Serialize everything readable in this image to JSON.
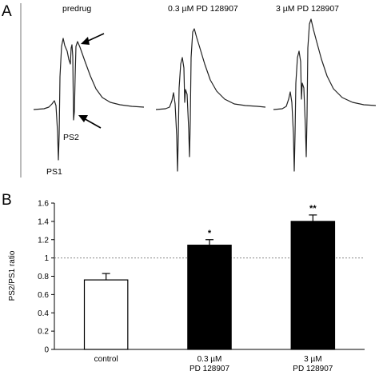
{
  "panel_a": {
    "label": "A",
    "conditions": [
      "predrug",
      "0.3 µM PD 128907",
      "3 µM PD 128907"
    ],
    "annotations": {
      "ps1": "PS1",
      "ps2": "PS2"
    }
  },
  "panel_b": {
    "label": "B"
  },
  "chart_data": {
    "type": "bar",
    "categories": [
      "control",
      "0.3 µM\nPD 128907",
      "3 µM\nPD 128907"
    ],
    "values": [
      0.76,
      1.14,
      1.4
    ],
    "errors": [
      0.07,
      0.06,
      0.07
    ],
    "significance": [
      "",
      "*",
      "**"
    ],
    "bar_fills": [
      "#ffffff",
      "#000000",
      "#000000"
    ],
    "reference_line": 1.0,
    "ylabel": "PS2/PS1 ratio",
    "xlabel": "",
    "ylim": [
      0,
      1.6
    ],
    "yticks": [
      0,
      0.2,
      0.4,
      0.6,
      0.8,
      1,
      1.2,
      1.4,
      1.6
    ],
    "grid": false
  }
}
